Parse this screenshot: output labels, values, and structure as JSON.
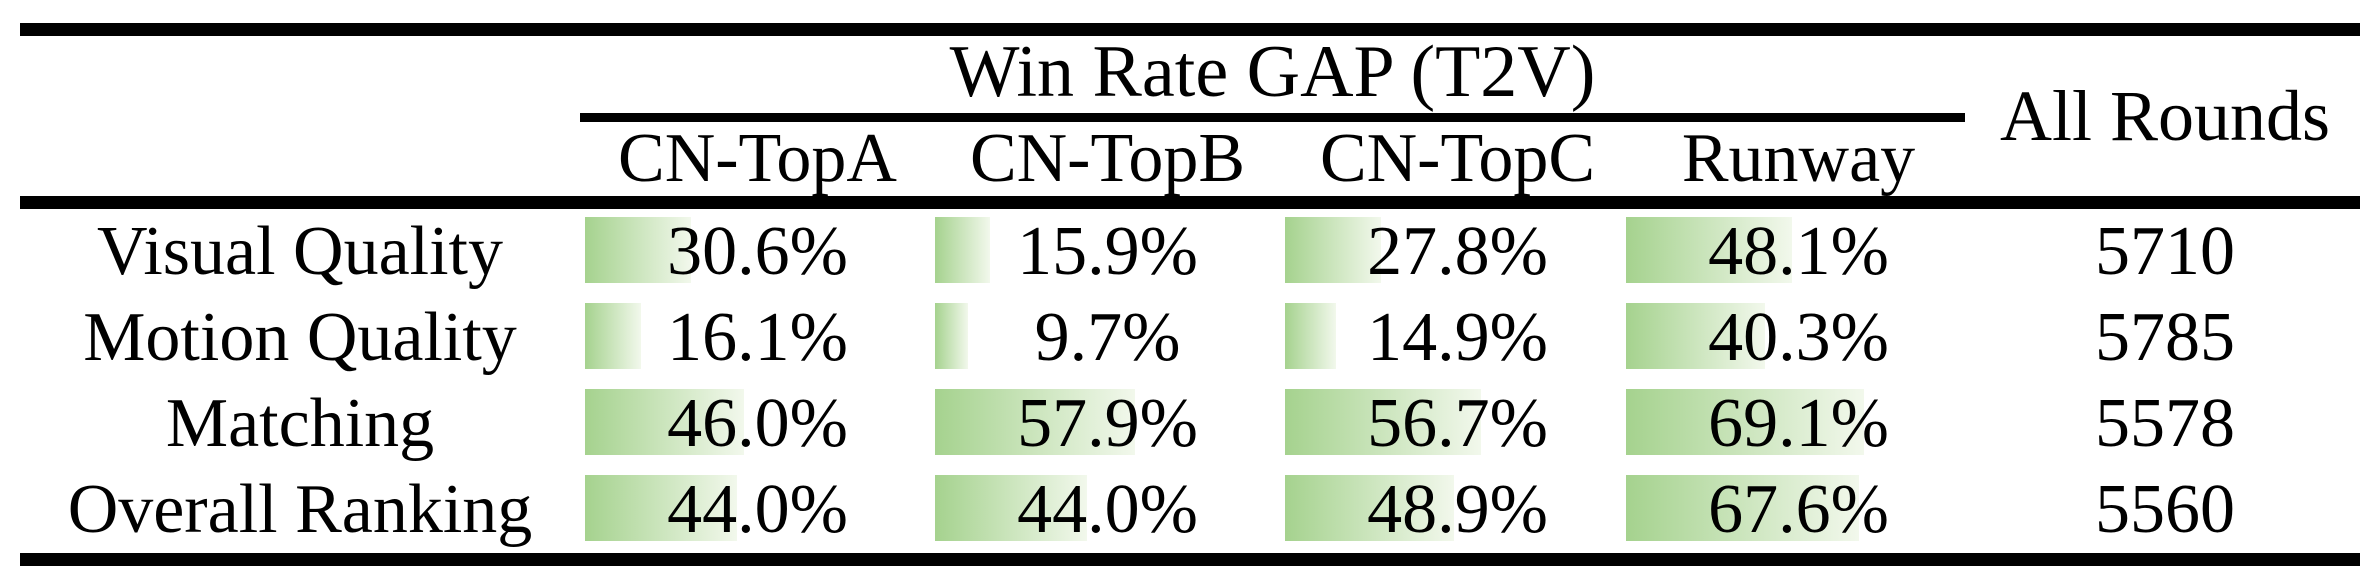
{
  "table": {
    "group_header": "Win Rate GAP (T2V)",
    "all_rounds_header": "All Rounds",
    "columns": [
      "CN-TopA",
      "CN-TopB",
      "CN-TopC",
      "Runway"
    ],
    "rows": [
      {
        "label": "Visual Quality",
        "values": [
          30.6,
          15.9,
          27.8,
          48.1
        ],
        "display": [
          "30.6%",
          "15.9%",
          "27.8%",
          "48.1%"
        ],
        "all_rounds": "5710"
      },
      {
        "label": "Motion Quality",
        "values": [
          16.1,
          9.7,
          14.9,
          40.3
        ],
        "display": [
          "16.1%",
          "9.7%",
          "14.9%",
          "40.3%"
        ],
        "all_rounds": "5785"
      },
      {
        "label": "Matching",
        "values": [
          46.0,
          57.9,
          56.7,
          69.1
        ],
        "display": [
          "46.0%",
          "57.9%",
          "56.7%",
          "69.1%"
        ],
        "all_rounds": "5578"
      },
      {
        "label": "Overall Ranking",
        "values": [
          44.0,
          44.0,
          48.9,
          67.6
        ],
        "display": [
          "44.0%",
          "44.0%",
          "48.9%",
          "67.6%"
        ],
        "all_rounds": "5560"
      }
    ],
    "bar_color_start": "#a5d28e",
    "bar_color_end": "#f2f8ec",
    "rule_color": "#000000"
  },
  "chart_data": {
    "type": "table",
    "title": "Win Rate GAP (T2V)",
    "categories": [
      "Visual Quality",
      "Motion Quality",
      "Matching",
      "Overall Ranking"
    ],
    "series": [
      {
        "name": "CN-TopA",
        "values": [
          30.6,
          16.1,
          46.0,
          44.0
        ]
      },
      {
        "name": "CN-TopB",
        "values": [
          15.9,
          9.7,
          57.9,
          44.0
        ]
      },
      {
        "name": "CN-TopC",
        "values": [
          27.8,
          14.9,
          56.7,
          48.9
        ]
      },
      {
        "name": "Runway",
        "values": [
          48.1,
          40.3,
          69.1,
          67.6
        ]
      },
      {
        "name": "All Rounds",
        "values": [
          5710,
          5785,
          5578,
          5560
        ]
      }
    ],
    "value_unit": "%",
    "bar_range": [
      0,
      100
    ],
    "notes": "Percent cells contain left-aligned green gradient bars proportional to value"
  }
}
